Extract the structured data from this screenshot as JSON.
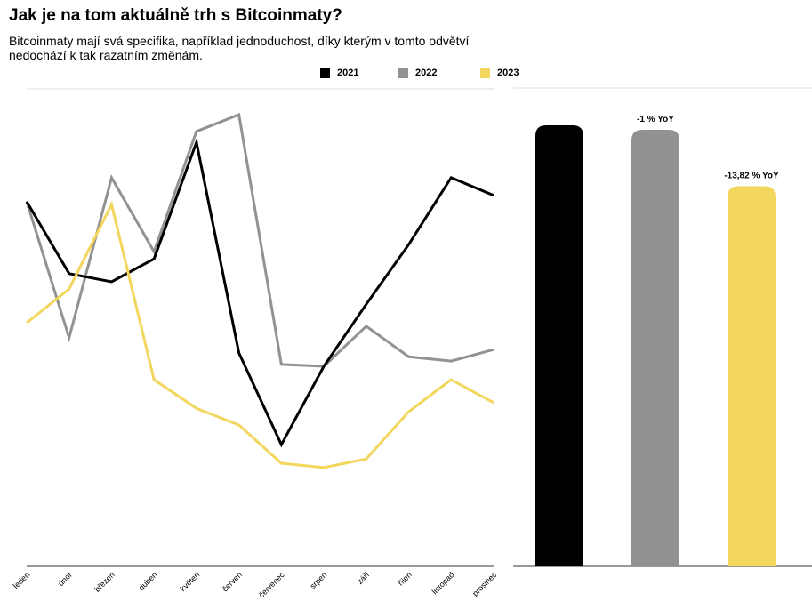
{
  "chart_data": [
    {
      "type": "line",
      "title": "Jak je na tom aktuálně trh s Bitcoinmaty?",
      "subtitle": "Bitcoinmaty mají svá specifika, například jednoduchost, díky kterým v tomto odvětví nedochází k tak razatním změnám.",
      "categories": [
        "leden",
        "únor",
        "březen",
        "duben",
        "květen",
        "červen",
        "červenec",
        "srpen",
        "září",
        "říjen",
        "listopad",
        "prosinec"
      ],
      "ylim": [
        0,
        100
      ],
      "grid": false,
      "legend": "top-right",
      "series": [
        {
          "name": "2021",
          "color": "#000000",
          "values": [
            76.4,
            61.3,
            59.6,
            64.4,
            88.8,
            44.7,
            25.5,
            41.9,
            54.9,
            67.4,
            81.4,
            77.7
          ]
        },
        {
          "name": "2022",
          "color": "#929292",
          "values": [
            76.4,
            47.9,
            81.4,
            65.9,
            91.1,
            94.6,
            42.3,
            41.9,
            50.3,
            43.9,
            43.0,
            45.4
          ]
        },
        {
          "name": "2023",
          "color": "#f2d65d",
          "values": [
            51.0,
            58.1,
            75.8,
            39.1,
            33.1,
            29.6,
            21.6,
            20.7,
            22.5,
            32.4,
            39.1,
            34.3
          ]
        }
      ]
    },
    {
      "type": "bar",
      "categories": [
        "2021",
        "2022",
        "2023"
      ],
      "values": [
        100,
        99,
        86.18
      ],
      "colors": [
        "#000000",
        "#929292",
        "#f2d65d"
      ],
      "data_labels": [
        "",
        "-1 % YoY",
        "-13,82 % YoY"
      ],
      "ylim": [
        0,
        100
      ]
    }
  ]
}
